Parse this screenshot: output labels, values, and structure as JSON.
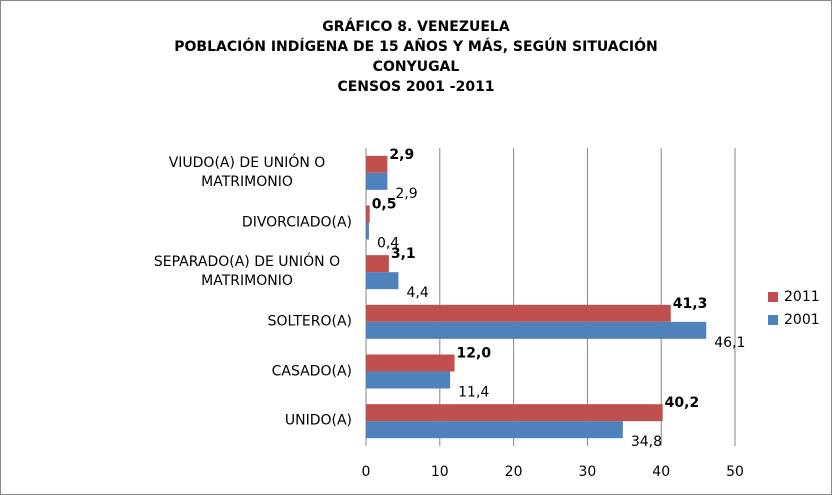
{
  "chart_data": {
    "type": "hbar",
    "title": [
      "GRÁFICO 8. VENEZUELA",
      "POBLACIÓN INDÍGENA DE 15 AÑOS Y MÁS, SEGÚN SITUACIÓN",
      "CONYUGAL",
      "CENSOS 2001 -2011"
    ],
    "categories": [
      "VIUDO(A) DE UNIÓN O MATRIMONIO",
      "DIVORCIADO(A)",
      "SEPARADO(A) DE UNIÓN O MATRIMONIO",
      "SOLTERO(A)",
      "CASADO(A)",
      "UNIDO(A)"
    ],
    "series": [
      {
        "name": "2011",
        "color": "#c0504d",
        "values": [
          2.9,
          0.5,
          3.1,
          41.3,
          12.0,
          40.2
        ],
        "value_labels": [
          "2,9",
          "0,5",
          "3,1",
          "41,3",
          "12,0",
          "40,2"
        ]
      },
      {
        "name": "2001",
        "color": "#4f81bd",
        "values": [
          2.9,
          0.4,
          4.4,
          46.1,
          11.4,
          34.8
        ],
        "value_labels": [
          "2,9",
          "0,4",
          "4,4",
          "46,1",
          "11,4",
          "34,8"
        ]
      }
    ],
    "xlim": [
      0,
      50
    ],
    "xticks": [
      0,
      10,
      20,
      30,
      40,
      50
    ],
    "grid": true,
    "legend": "right"
  }
}
